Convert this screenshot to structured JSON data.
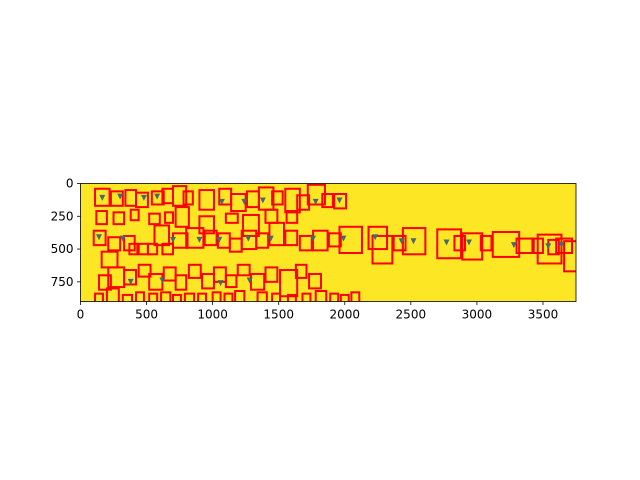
{
  "chart_data": {
    "type": "heatmap",
    "title": "",
    "xlabel": "",
    "ylabel": "",
    "xlim": [
      0,
      3750
    ],
    "ylim": [
      900,
      0
    ],
    "x_ticks": [
      0,
      500,
      1000,
      1500,
      2000,
      2500,
      3000,
      3500
    ],
    "y_ticks": [
      0,
      250,
      500,
      750
    ],
    "colors": {
      "image_fill": "#fde725",
      "box_stroke": "#ff0000",
      "glyph_fill": "#4a6a6a",
      "axis": "#000000"
    },
    "boxes_note_unit": "data units (x = column, y = row)",
    "boxes": [
      [
        110,
        40,
        110,
        130
      ],
      [
        230,
        60,
        90,
        110
      ],
      [
        340,
        50,
        80,
        120
      ],
      [
        420,
        70,
        90,
        110
      ],
      [
        540,
        60,
        90,
        100
      ],
      [
        620,
        40,
        80,
        110
      ],
      [
        700,
        20,
        100,
        150
      ],
      [
        780,
        60,
        70,
        100
      ],
      [
        900,
        50,
        110,
        150
      ],
      [
        1050,
        40,
        90,
        120
      ],
      [
        1140,
        80,
        110,
        130
      ],
      [
        1260,
        60,
        90,
        120
      ],
      [
        1350,
        30,
        110,
        170
      ],
      [
        1450,
        60,
        80,
        100
      ],
      [
        1550,
        40,
        110,
        180
      ],
      [
        1640,
        90,
        90,
        110
      ],
      [
        1720,
        10,
        130,
        150
      ],
      [
        1830,
        80,
        80,
        100
      ],
      [
        1920,
        80,
        90,
        110
      ],
      [
        120,
        210,
        80,
        100
      ],
      [
        250,
        220,
        80,
        90
      ],
      [
        380,
        200,
        60,
        80
      ],
      [
        520,
        230,
        80,
        80
      ],
      [
        640,
        220,
        60,
        80
      ],
      [
        720,
        180,
        100,
        150
      ],
      [
        900,
        250,
        110,
        130
      ],
      [
        1100,
        230,
        90,
        70
      ],
      [
        1230,
        240,
        120,
        160
      ],
      [
        1400,
        200,
        90,
        100
      ],
      [
        1560,
        210,
        80,
        90
      ],
      [
        100,
        360,
        90,
        110
      ],
      [
        160,
        520,
        120,
        120
      ],
      [
        210,
        410,
        90,
        100
      ],
      [
        330,
        400,
        80,
        110
      ],
      [
        370,
        460,
        60,
        80
      ],
      [
        440,
        460,
        70,
        80
      ],
      [
        510,
        460,
        70,
        80
      ],
      [
        560,
        320,
        110,
        150
      ],
      [
        620,
        460,
        80,
        80
      ],
      [
        700,
        380,
        110,
        110
      ],
      [
        800,
        340,
        130,
        150
      ],
      [
        940,
        360,
        90,
        110
      ],
      [
        1040,
        380,
        90,
        110
      ],
      [
        1130,
        420,
        90,
        100
      ],
      [
        1220,
        360,
        110,
        140
      ],
      [
        1330,
        380,
        90,
        110
      ],
      [
        1430,
        300,
        110,
        170
      ],
      [
        1550,
        360,
        90,
        110
      ],
      [
        1660,
        400,
        90,
        110
      ],
      [
        1760,
        360,
        110,
        150
      ],
      [
        1880,
        380,
        90,
        100
      ],
      [
        1960,
        330,
        170,
        200
      ],
      [
        2180,
        330,
        140,
        170
      ],
      [
        2210,
        400,
        150,
        210
      ],
      [
        2370,
        400,
        90,
        110
      ],
      [
        2440,
        340,
        170,
        200
      ],
      [
        2700,
        350,
        180,
        220
      ],
      [
        2830,
        400,
        80,
        110
      ],
      [
        2890,
        380,
        150,
        200
      ],
      [
        3030,
        400,
        80,
        110
      ],
      [
        3120,
        370,
        200,
        190
      ],
      [
        3300,
        420,
        130,
        110
      ],
      [
        3420,
        420,
        80,
        110
      ],
      [
        3460,
        390,
        180,
        220
      ],
      [
        3540,
        430,
        80,
        110
      ],
      [
        3600,
        420,
        120,
        110
      ],
      [
        3660,
        440,
        110,
        230
      ],
      [
        140,
        700,
        90,
        110
      ],
      [
        210,
        640,
        120,
        150
      ],
      [
        330,
        660,
        90,
        110
      ],
      [
        440,
        620,
        90,
        90
      ],
      [
        520,
        690,
        100,
        120
      ],
      [
        630,
        640,
        90,
        100
      ],
      [
        720,
        700,
        80,
        110
      ],
      [
        820,
        620,
        90,
        100
      ],
      [
        920,
        690,
        90,
        110
      ],
      [
        1010,
        640,
        90,
        110
      ],
      [
        1100,
        700,
        80,
        90
      ],
      [
        1190,
        620,
        90,
        80
      ],
      [
        1290,
        690,
        100,
        120
      ],
      [
        1400,
        640,
        90,
        110
      ],
      [
        1510,
        660,
        130,
        200
      ],
      [
        1630,
        620,
        80,
        100
      ],
      [
        1730,
        690,
        90,
        110
      ],
      [
        110,
        840,
        60,
        80
      ],
      [
        200,
        800,
        90,
        110
      ],
      [
        320,
        850,
        70,
        60
      ],
      [
        420,
        830,
        60,
        80
      ],
      [
        520,
        840,
        60,
        70
      ],
      [
        610,
        830,
        70,
        80
      ],
      [
        700,
        850,
        60,
        70
      ],
      [
        790,
        840,
        70,
        80
      ],
      [
        890,
        840,
        60,
        70
      ],
      [
        1000,
        830,
        60,
        80
      ],
      [
        1090,
        840,
        60,
        70
      ],
      [
        1170,
        820,
        70,
        90
      ],
      [
        1340,
        830,
        70,
        90
      ],
      [
        1450,
        840,
        60,
        70
      ],
      [
        1570,
        850,
        60,
        60
      ],
      [
        1680,
        840,
        60,
        70
      ],
      [
        1780,
        820,
        80,
        90
      ],
      [
        1890,
        840,
        60,
        70
      ],
      [
        1970,
        850,
        60,
        60
      ],
      [
        2050,
        830,
        60,
        80
      ]
    ],
    "glyphs_note_unit": "data units (center x, center y)",
    "glyphs": [
      [
        165,
        110
      ],
      [
        300,
        100
      ],
      [
        480,
        110
      ],
      [
        580,
        100
      ],
      [
        1070,
        140
      ],
      [
        1240,
        140
      ],
      [
        1380,
        130
      ],
      [
        1780,
        140
      ],
      [
        1960,
        130
      ],
      [
        140,
        410
      ],
      [
        320,
        420
      ],
      [
        700,
        430
      ],
      [
        900,
        430
      ],
      [
        1050,
        430
      ],
      [
        1270,
        420
      ],
      [
        1440,
        420
      ],
      [
        1760,
        420
      ],
      [
        1990,
        420
      ],
      [
        2230,
        410
      ],
      [
        2430,
        440
      ],
      [
        2520,
        440
      ],
      [
        2770,
        450
      ],
      [
        2940,
        450
      ],
      [
        3280,
        470
      ],
      [
        3540,
        480
      ],
      [
        3640,
        470
      ],
      [
        380,
        750
      ],
      [
        620,
        740
      ],
      [
        1060,
        760
      ],
      [
        1280,
        740
      ]
    ]
  }
}
